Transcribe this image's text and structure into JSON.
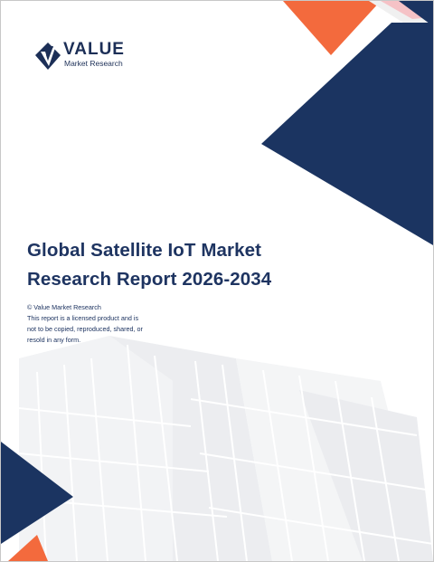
{
  "logo": {
    "word": "VALUE",
    "subtitle": "Market Research"
  },
  "report": {
    "title_line1": "Global Satellite IoT Market",
    "title_line2": "Research Report 2026-2034"
  },
  "notice": {
    "copyright": "© Value Market Research",
    "line1": "This report is a licensed product and is",
    "line2": "not to be copied, reproduced, shared, or",
    "line3": "resold in any form."
  },
  "colors": {
    "navy": "#1b3461",
    "orange": "#f36a3d",
    "pink": "#f5c2c6",
    "light_gray": "#eeeeee"
  }
}
